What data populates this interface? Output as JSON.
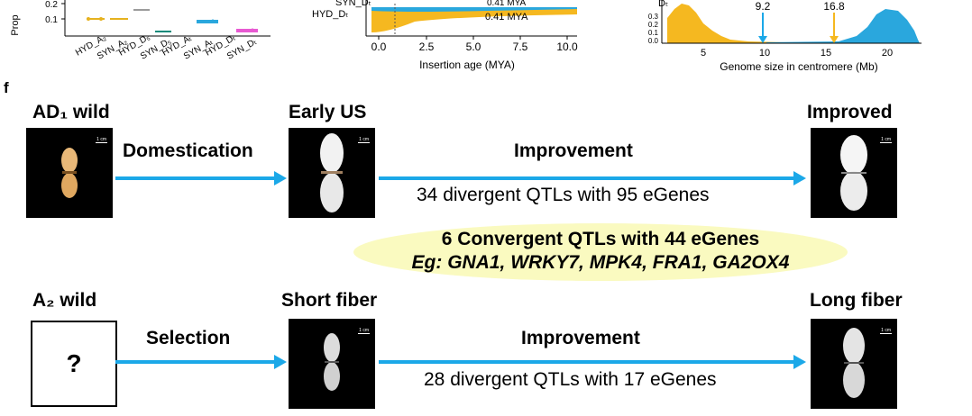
{
  "top_panels": {
    "left": {
      "ylabel": "Prop",
      "ticks_y": [
        "0.2",
        "0.1"
      ],
      "groups": [
        "HYD_A₂",
        "SYN_A₂",
        "HYD_D₅",
        "SYN_D₅",
        "HYD_Aₜ",
        "SYN_Aₜ",
        "HYD_Dₜ",
        "SYN_Dₜ"
      ]
    },
    "middle": {
      "legend_1": "SYN_Dₜ",
      "legend_2": "HYD_Dₜ",
      "annotation": "0.41 MYA",
      "ticks_x": [
        "0.0",
        "2.5",
        "5.0",
        "7.5",
        "10.0"
      ],
      "xlabel": "Insertion age (MYA)"
    },
    "right": {
      "corner_label": "Dₜ",
      "ticks_y": [
        "0.3",
        "0.2",
        "0.1",
        "0.0"
      ],
      "ticks_x": [
        "5",
        "10",
        "15",
        "20"
      ],
      "marker_1": "9.2",
      "marker_2": "16.8",
      "xlabel": "Genome size in centromere (Mb)"
    }
  },
  "panel_label": "f",
  "row1": {
    "stage_1": "AD₁ wild",
    "stage_2": "Early US",
    "stage_3": "Improved",
    "process_1": "Domestication",
    "process_2": "Improvement",
    "qtl_text": "34 divergent QTLs with 95 eGenes"
  },
  "convergent": {
    "line_1": "6 Convergent QTLs with 44 eGenes",
    "line_2": "Eg: GNA1, WRKY7, MPK4, FRA1, GA2OX4"
  },
  "row2": {
    "stage_1": "A₂ wild",
    "stage_2": "Short fiber",
    "stage_3": "Long fiber",
    "process_1": "Selection",
    "process_2": "Improvement",
    "qtl_text": "28 divergent QTLs with 17 eGenes",
    "unknown_mark": "?"
  },
  "scale_bar": "1 cm",
  "colors": {
    "arrow": "#1ba8e8",
    "ellipse": "#fafac0",
    "yellow_series": "#f5b820",
    "blue_series": "#2aa7dd"
  }
}
